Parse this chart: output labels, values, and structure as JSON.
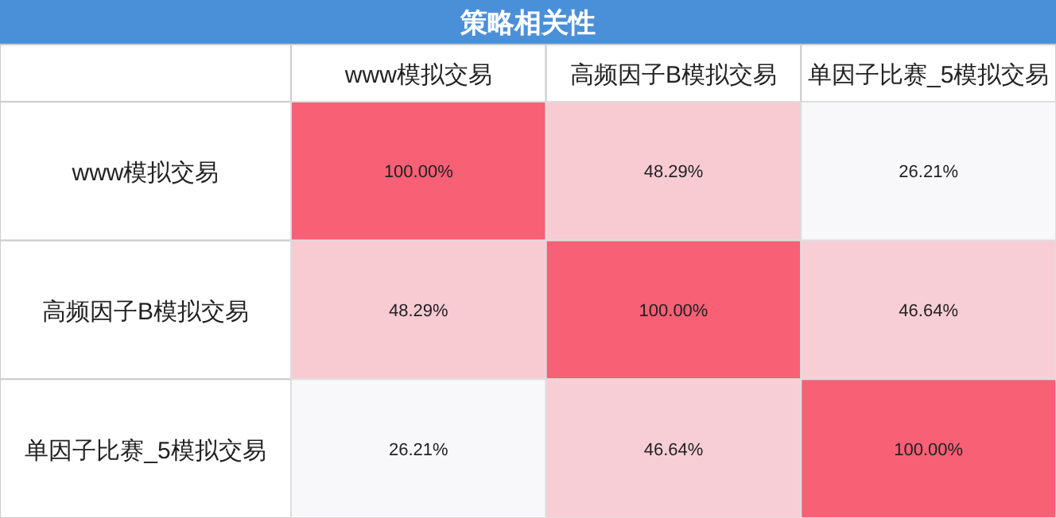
{
  "chart_data": {
    "type": "heatmap",
    "title": "策略相关性",
    "categories": [
      "www模拟交易",
      "高频因子B模拟交易",
      "单因子比赛_5模拟交易"
    ],
    "y_categories": [
      "www模拟交易",
      "高频因子B模拟交易",
      "单因子比赛_5模拟交易"
    ],
    "cells": [
      [
        100,
        48.29,
        26.21
      ],
      [
        48.29,
        100,
        46.64
      ],
      [
        26.21,
        46.64,
        100
      ]
    ],
    "cell_labels": [
      [
        "100.00%",
        "48.29%",
        "26.21%"
      ],
      [
        "48.29%",
        "100.00%",
        "46.64%"
      ],
      [
        "26.21%",
        "46.64%",
        "100.00%"
      ]
    ]
  }
}
